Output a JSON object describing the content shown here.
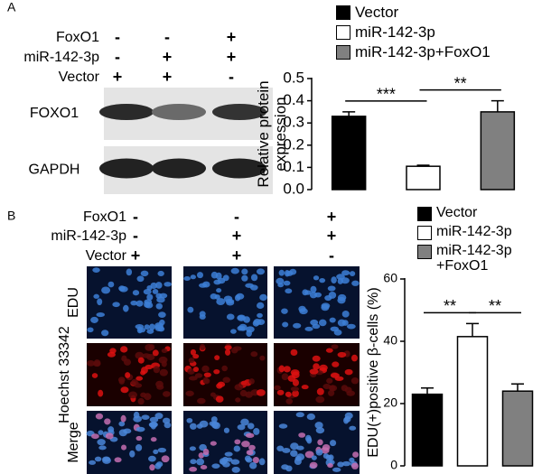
{
  "panels": [
    {
      "label": "A",
      "conditions": [
        {
          "name": "FoxO1",
          "signs": [
            "-",
            "-",
            "+"
          ]
        },
        {
          "name": "miR-142-3p",
          "signs": [
            "-",
            "+",
            "+"
          ]
        },
        {
          "name": "Vector",
          "signs": [
            "+",
            "+",
            "-"
          ]
        }
      ],
      "blot_labels": [
        "FOXO1",
        "GAPDH"
      ]
    },
    {
      "label": "B",
      "conditions": [
        {
          "name": "FoxO1",
          "signs": [
            "-",
            "-",
            "+"
          ]
        },
        {
          "name": "miR-142-3p",
          "signs": [
            "-",
            "+",
            "+"
          ]
        },
        {
          "name": "Vector",
          "signs": [
            "+",
            "+",
            "-"
          ]
        }
      ],
      "image_rows": [
        "EDU",
        "Hoechst 33342",
        "Merge"
      ]
    }
  ],
  "chart_data": [
    {
      "type": "bar",
      "ylabel": [
        "Relative protein",
        "expression"
      ],
      "categories": [
        null
      ],
      "series": [
        {
          "name": "Vector",
          "color": "#000000",
          "values": [
            0.33
          ],
          "errors": [
            0.02
          ]
        },
        {
          "name": "miR-142-3p",
          "color": "#ffffff",
          "values": [
            0.105
          ],
          "errors": [
            0.005
          ]
        },
        {
          "name": "miR-142-3p+FoxO1",
          "color": "#808080",
          "values": [
            0.35
          ],
          "errors": [
            0.05
          ]
        }
      ],
      "annotations": [
        "***",
        "**"
      ],
      "ylim": [
        0,
        0.5
      ],
      "yticks": [
        {
          "value": 0,
          "label": "0.0"
        },
        0.1,
        0.2,
        0.3,
        0.4,
        0.5
      ]
    },
    {
      "type": "bar",
      "ylabel": [
        "EDU(+)positive β-cells (%)"
      ],
      "categories": [
        null
      ],
      "series": [
        {
          "name": "Vector",
          "color": "#000000",
          "values": [
            23
          ],
          "errors": [
            2
          ]
        },
        {
          "name": "miR-142-3p",
          "color": "#ffffff",
          "values": [
            41.5
          ],
          "errors": [
            4.2
          ]
        },
        {
          "name": "miR-142-3p +FoxO1",
          "color": "#808080",
          "values": [
            24
          ],
          "errors": [
            2.3
          ]
        }
      ],
      "annotations": [
        "**",
        "**"
      ],
      "ylim": [
        0,
        60
      ],
      "yticks": [
        0,
        20,
        40,
        60
      ]
    }
  ]
}
